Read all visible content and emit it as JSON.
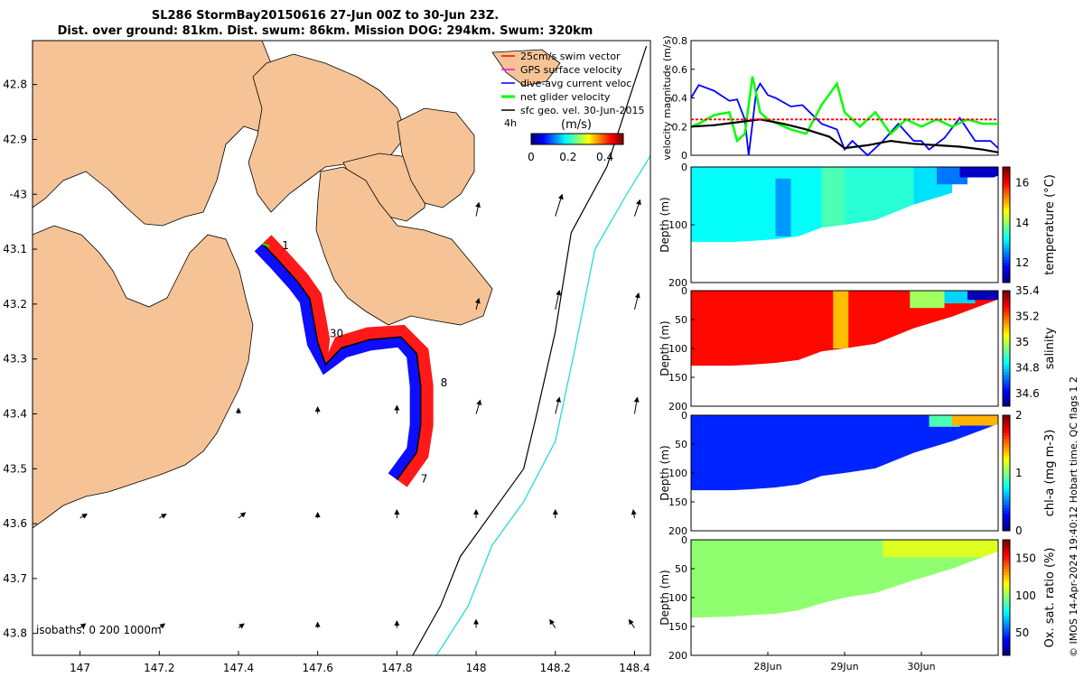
{
  "header": {
    "line1": "SL286 StormBay20150616 27-Jun 00Z to 30-Jun 23Z.",
    "line2": "Dist. over ground: 81km. Dist. swum: 86km. Mission DOG: 294km. Swum: 320km"
  },
  "credit": "© IMOS 14-Apr-2024 19:40:12 Hobart time. QC flags 1  2",
  "colors": {
    "land": "#f5c396",
    "red": "#ff0000",
    "blue": "#0000ff",
    "green": "#00ff00",
    "magenta": "#ff00ff",
    "cyan": "#33dddd"
  },
  "chart_data": [
    {
      "type": "map",
      "xlim": [
        146.88,
        148.44
      ],
      "ylim": [
        -43.84,
        -42.72
      ],
      "xticks": [
        147,
        147.2,
        147.4,
        147.6,
        147.8,
        148,
        148.2,
        148.4
      ],
      "xtick_labels": [
        "147",
        "147.2",
        "147.4",
        "147.6",
        "147.8",
        "148",
        "148.2",
        "148.4"
      ],
      "yticks": [
        -42.8,
        -42.9,
        -43,
        -43.1,
        -43.2,
        -43.3,
        -43.4,
        -43.5,
        -43.6,
        -43.7,
        -43.8
      ],
      "ytick_labels": [
        "42.8",
        "42.9",
        "-43",
        "43.1",
        "43.2",
        "43.3",
        "43.4",
        "43.5",
        "43.6",
        "43.7",
        "43.8"
      ],
      "legend": [
        {
          "label": "25cm/s swim vector",
          "color": "#ff0000"
        },
        {
          "label": "GPS surface velocity",
          "color": "#ff00ff"
        },
        {
          "label": "dive-avg current veloc.",
          "color": "#0000ff"
        },
        {
          "label": "net glider velocity",
          "color": "#00ff00"
        },
        {
          "label": "sfc geo. vel. 30-Jun-2015",
          "color": "#000000"
        }
      ],
      "colorbar": {
        "label": "(m/s)",
        "tick_labels": [
          "0",
          "0.2",
          "0.4"
        ],
        "range": [
          0,
          0.5
        ],
        "side_label": "4h"
      },
      "isobath_label": "isobaths: 0   200  1000m",
      "track": [
        {
          "lon": 147.46,
          "lat": -43.09
        },
        {
          "lon": 147.5,
          "lat": -43.12
        },
        {
          "lon": 147.55,
          "lat": -43.16
        },
        {
          "lon": 147.58,
          "lat": -43.19
        },
        {
          "lon": 147.59,
          "lat": -43.23
        },
        {
          "lon": 147.6,
          "lat": -43.27
        },
        {
          "lon": 147.62,
          "lat": -43.31
        },
        {
          "lon": 147.66,
          "lat": -43.28
        },
        {
          "lon": 147.73,
          "lat": -43.265
        },
        {
          "lon": 147.81,
          "lat": -43.26
        },
        {
          "lon": 147.85,
          "lat": -43.29
        },
        {
          "lon": 147.86,
          "lat": -43.35
        },
        {
          "lon": 147.86,
          "lat": -43.42
        },
        {
          "lon": 147.85,
          "lat": -43.47
        },
        {
          "lon": 147.8,
          "lat": -43.52
        }
      ],
      "day_labels": [
        {
          "text": "1",
          "lon": 147.51,
          "lat": -43.1
        },
        {
          "text": "30",
          "lon": 147.63,
          "lat": -43.26
        },
        {
          "text": "8",
          "lon": 147.91,
          "lat": -43.35
        },
        {
          "text": "7",
          "lon": 147.86,
          "lat": -43.525
        }
      ],
      "geo_vectors": [
        {
          "lon": 148.0,
          "lat": -43.04,
          "u": 0.02,
          "v": 0.1
        },
        {
          "lon": 148.2,
          "lat": -43.04,
          "u": 0.05,
          "v": 0.16
        },
        {
          "lon": 148.4,
          "lat": -43.04,
          "u": 0.04,
          "v": 0.12
        },
        {
          "lon": 148.0,
          "lat": -43.21,
          "u": 0.02,
          "v": 0.08
        },
        {
          "lon": 148.2,
          "lat": -43.21,
          "u": 0.03,
          "v": 0.14
        },
        {
          "lon": 148.4,
          "lat": -43.21,
          "u": 0.03,
          "v": 0.12
        },
        {
          "lon": 147.4,
          "lat": -43.4,
          "u": 0.0,
          "v": 0.04
        },
        {
          "lon": 147.6,
          "lat": -43.4,
          "u": 0.0,
          "v": 0.05
        },
        {
          "lon": 147.8,
          "lat": -43.4,
          "u": 0.0,
          "v": 0.06
        },
        {
          "lon": 148.0,
          "lat": -43.4,
          "u": 0.03,
          "v": 0.1
        },
        {
          "lon": 148.2,
          "lat": -43.4,
          "u": 0.03,
          "v": 0.12
        },
        {
          "lon": 148.4,
          "lat": -43.4,
          "u": 0.02,
          "v": 0.12
        },
        {
          "lon": 147.0,
          "lat": -43.59,
          "u": 0.05,
          "v": 0.03
        },
        {
          "lon": 147.2,
          "lat": -43.59,
          "u": 0.05,
          "v": 0.03
        },
        {
          "lon": 147.4,
          "lat": -43.59,
          "u": 0.05,
          "v": 0.04
        },
        {
          "lon": 147.6,
          "lat": -43.59,
          "u": 0.0,
          "v": 0.04
        },
        {
          "lon": 147.8,
          "lat": -43.59,
          "u": 0.0,
          "v": 0.06
        },
        {
          "lon": 148.0,
          "lat": -43.59,
          "u": 0.0,
          "v": 0.06
        },
        {
          "lon": 148.2,
          "lat": -43.59,
          "u": 0.0,
          "v": 0.06
        },
        {
          "lon": 148.4,
          "lat": -43.59,
          "u": -0.01,
          "v": 0.06
        },
        {
          "lon": 147.0,
          "lat": -43.79,
          "u": 0.04,
          "v": 0.03
        },
        {
          "lon": 147.2,
          "lat": -43.79,
          "u": 0.04,
          "v": 0.03
        },
        {
          "lon": 147.4,
          "lat": -43.79,
          "u": 0.04,
          "v": 0.03
        },
        {
          "lon": 147.6,
          "lat": -43.79,
          "u": 0.0,
          "v": 0.04
        },
        {
          "lon": 147.8,
          "lat": -43.79,
          "u": 0.0,
          "v": 0.05
        },
        {
          "lon": 148.0,
          "lat": -43.79,
          "u": 0.0,
          "v": 0.06
        },
        {
          "lon": 148.2,
          "lat": -43.79,
          "u": -0.04,
          "v": 0.06
        },
        {
          "lon": 148.4,
          "lat": -43.79,
          "u": -0.04,
          "v": 0.06
        }
      ],
      "isobath_200": [
        {
          "lon": 148.43,
          "lat": -42.73
        },
        {
          "lon": 148.33,
          "lat": -42.95
        },
        {
          "lon": 148.24,
          "lat": -43.07
        },
        {
          "lon": 148.2,
          "lat": -43.25
        },
        {
          "lon": 148.15,
          "lat": -43.41
        },
        {
          "lon": 148.12,
          "lat": -43.5
        },
        {
          "lon": 148.05,
          "lat": -43.57
        },
        {
          "lon": 147.96,
          "lat": -43.66
        },
        {
          "lon": 147.91,
          "lat": -43.75
        },
        {
          "lon": 147.84,
          "lat": -43.84
        }
      ],
      "isobath_1000": [
        {
          "lon": 148.44,
          "lat": -42.93
        },
        {
          "lon": 148.38,
          "lat": -43.0
        },
        {
          "lon": 148.3,
          "lat": -43.1
        },
        {
          "lon": 148.25,
          "lat": -43.28
        },
        {
          "lon": 148.2,
          "lat": -43.45
        },
        {
          "lon": 148.12,
          "lat": -43.56
        },
        {
          "lon": 148.04,
          "lat": -43.64
        },
        {
          "lon": 147.98,
          "lat": -43.75
        },
        {
          "lon": 147.9,
          "lat": -43.84
        }
      ]
    },
    {
      "type": "line",
      "ylabel": "velocity magnitude (m/s)",
      "ylim": [
        0,
        0.8
      ],
      "yticks": [
        0,
        0.2,
        0.4,
        0.6,
        0.8
      ],
      "xlim": [
        27.0,
        31.0
      ],
      "series": [
        {
          "name": "dive-avg current veloc.",
          "color": "#0000ff",
          "x": [
            27.0,
            27.1,
            27.3,
            27.5,
            27.6,
            27.7,
            27.75,
            27.85,
            27.9,
            28.0,
            28.1,
            28.3,
            28.45,
            28.7,
            28.9,
            29.0,
            29.1,
            29.3,
            29.5,
            29.7,
            29.9,
            30.0,
            30.1,
            30.3,
            30.5,
            30.7,
            30.9,
            31.0
          ],
          "y": [
            0.4,
            0.49,
            0.45,
            0.38,
            0.39,
            0.25,
            0.0,
            0.45,
            0.5,
            0.42,
            0.4,
            0.34,
            0.35,
            0.22,
            0.18,
            0.04,
            0.1,
            0.0,
            0.1,
            0.22,
            0.1,
            0.1,
            0.04,
            0.12,
            0.26,
            0.1,
            0.1,
            0.05
          ]
        },
        {
          "name": "net glider velocity",
          "color": "#00ff00",
          "x": [
            27.0,
            27.1,
            27.3,
            27.5,
            27.6,
            27.7,
            27.8,
            27.9,
            28.0,
            28.3,
            28.5,
            28.7,
            28.9,
            29.0,
            29.2,
            29.4,
            29.6,
            29.8,
            30.0,
            30.2,
            30.4,
            30.6,
            30.8,
            31.0
          ],
          "y": [
            0.2,
            0.22,
            0.28,
            0.3,
            0.1,
            0.15,
            0.55,
            0.3,
            0.25,
            0.18,
            0.15,
            0.35,
            0.5,
            0.3,
            0.2,
            0.3,
            0.15,
            0.25,
            0.2,
            0.25,
            0.2,
            0.25,
            0.22,
            0.22
          ]
        },
        {
          "name": "net glider velocity (black)",
          "color": "#000000",
          "x": [
            27.0,
            27.3,
            27.6,
            27.9,
            28.2,
            28.5,
            28.8,
            29.0,
            29.3,
            29.6,
            29.9,
            30.2,
            30.5,
            30.8,
            31.0
          ],
          "y": [
            0.2,
            0.21,
            0.23,
            0.25,
            0.22,
            0.18,
            0.13,
            0.05,
            0.07,
            0.1,
            0.08,
            0.07,
            0.06,
            0.04,
            0.02
          ]
        },
        {
          "name": "25cm/s swim vector",
          "color": "#ff0000",
          "x": [
            27.0,
            31.0
          ],
          "y": [
            0.25,
            0.25
          ]
        }
      ]
    },
    {
      "type": "heatmap",
      "ylabel": "Depth (m)",
      "ylim": [
        200,
        0
      ],
      "yticks": [
        0,
        100,
        200
      ],
      "ytick_labels": [
        "0",
        "100",
        "200"
      ],
      "colorbar_label": "temperature (°C)",
      "colorbar_range": [
        11,
        16.8
      ],
      "colorbar_ticks": [
        "12",
        "14",
        "16"
      ],
      "bottom_depth": [
        [
          27.0,
          130
        ],
        [
          27.5,
          130
        ],
        [
          27.8,
          128
        ],
        [
          28.1,
          125
        ],
        [
          28.4,
          120
        ],
        [
          28.7,
          105
        ],
        [
          29.0,
          100
        ],
        [
          29.4,
          92
        ],
        [
          29.9,
          65
        ],
        [
          30.4,
          45
        ],
        [
          31.0,
          15
        ]
      ],
      "patches": [
        {
          "x0": 27.0,
          "x1": 28.7,
          "d0": 0,
          "d1": 130,
          "value": 13.2
        },
        {
          "x0": 28.7,
          "x1": 29.0,
          "d0": 0,
          "d1": 110,
          "value": 13.6
        },
        {
          "x0": 29.0,
          "x1": 29.9,
          "d0": 0,
          "d1": 100,
          "value": 13.4
        },
        {
          "x0": 29.9,
          "x1": 30.4,
          "d0": 0,
          "d1": 65,
          "value": 13.0
        },
        {
          "x0": 30.2,
          "x1": 30.6,
          "d0": 0,
          "d1": 30,
          "value": 12.4
        },
        {
          "x0": 30.5,
          "x1": 31.0,
          "d0": 0,
          "d1": 18,
          "value": 11.4
        },
        {
          "x0": 28.1,
          "x1": 28.3,
          "d0": 20,
          "d1": 120,
          "value": 12.6
        }
      ]
    },
    {
      "type": "heatmap",
      "ylabel": "Depth (m)",
      "ylim": [
        200,
        0
      ],
      "yticks": [
        0,
        50,
        100,
        150,
        200
      ],
      "ytick_labels": [
        "0",
        "50",
        "100",
        "150",
        "200"
      ],
      "colorbar_label": "salinity",
      "colorbar_range": [
        34.5,
        35.4
      ],
      "colorbar_ticks": [
        "34.6",
        "34.8",
        "35",
        "35.2",
        "35.4"
      ],
      "bottom_depth": [
        [
          27.0,
          130
        ],
        [
          27.5,
          130
        ],
        [
          27.8,
          128
        ],
        [
          28.1,
          125
        ],
        [
          28.4,
          120
        ],
        [
          28.7,
          105
        ],
        [
          29.0,
          100
        ],
        [
          29.4,
          92
        ],
        [
          29.9,
          65
        ],
        [
          30.4,
          45
        ],
        [
          31.0,
          15
        ]
      ],
      "patches": [
        {
          "x0": 27.0,
          "x1": 31.0,
          "d0": 0,
          "d1": 130,
          "value": 35.28
        },
        {
          "x0": 28.85,
          "x1": 29.05,
          "d0": 0,
          "d1": 100,
          "value": 35.12
        },
        {
          "x0": 29.85,
          "x1": 30.3,
          "d0": 0,
          "d1": 30,
          "value": 34.98
        },
        {
          "x0": 30.3,
          "x1": 30.7,
          "d0": 0,
          "d1": 22,
          "value": 34.8
        },
        {
          "x0": 30.6,
          "x1": 31.0,
          "d0": 0,
          "d1": 16,
          "value": 34.55
        }
      ]
    },
    {
      "type": "heatmap",
      "ylabel": "Depth (m)",
      "ylim": [
        200,
        0
      ],
      "yticks": [
        0,
        50,
        100,
        150,
        200
      ],
      "ytick_labels": [
        "0",
        "50",
        "100",
        "150",
        "200"
      ],
      "colorbar_label": "chl-a (mg m-3)",
      "colorbar_range": [
        0,
        2
      ],
      "colorbar_ticks": [
        "0",
        "1",
        "2"
      ],
      "bottom_depth": [
        [
          27.0,
          130
        ],
        [
          27.5,
          130
        ],
        [
          27.8,
          128
        ],
        [
          28.1,
          125
        ],
        [
          28.4,
          120
        ],
        [
          28.7,
          105
        ],
        [
          29.0,
          100
        ],
        [
          29.4,
          92
        ],
        [
          29.9,
          65
        ],
        [
          30.4,
          45
        ],
        [
          31.0,
          15
        ]
      ],
      "patches": [
        {
          "x0": 27.0,
          "x1": 31.0,
          "d0": 0,
          "d1": 130,
          "value": 0.32
        },
        {
          "x0": 30.1,
          "x1": 30.5,
          "d0": 0,
          "d1": 20,
          "value": 0.9
        },
        {
          "x0": 30.4,
          "x1": 31.0,
          "d0": 0,
          "d1": 18,
          "value": 1.4
        }
      ]
    },
    {
      "type": "heatmap",
      "ylabel": "Depth (m)",
      "ylim": [
        200,
        0
      ],
      "yticks": [
        0,
        50,
        100,
        150,
        200
      ],
      "ytick_labels": [
        "0",
        "50",
        "100",
        "150",
        "200"
      ],
      "colorbar_label": "Ox. sat. ratio (%)",
      "colorbar_range": [
        20,
        175
      ],
      "colorbar_ticks": [
        "50",
        "100",
        "150"
      ],
      "xticks": [
        28,
        29,
        30
      ],
      "xtick_labels": [
        "28Jun",
        "29Jun",
        "30Jun"
      ],
      "bottom_depth": [
        [
          27.0,
          135
        ],
        [
          27.5,
          133
        ],
        [
          27.8,
          130
        ],
        [
          28.1,
          128
        ],
        [
          28.4,
          122
        ],
        [
          28.7,
          110
        ],
        [
          29.0,
          100
        ],
        [
          29.4,
          92
        ],
        [
          29.9,
          70
        ],
        [
          30.4,
          50
        ],
        [
          31.0,
          20
        ]
      ],
      "patches": [
        {
          "x0": 27.0,
          "x1": 31.0,
          "d0": 0,
          "d1": 135,
          "value": 100
        },
        {
          "x0": 29.5,
          "x1": 31.0,
          "d0": 0,
          "d1": 30,
          "value": 112
        }
      ]
    }
  ]
}
